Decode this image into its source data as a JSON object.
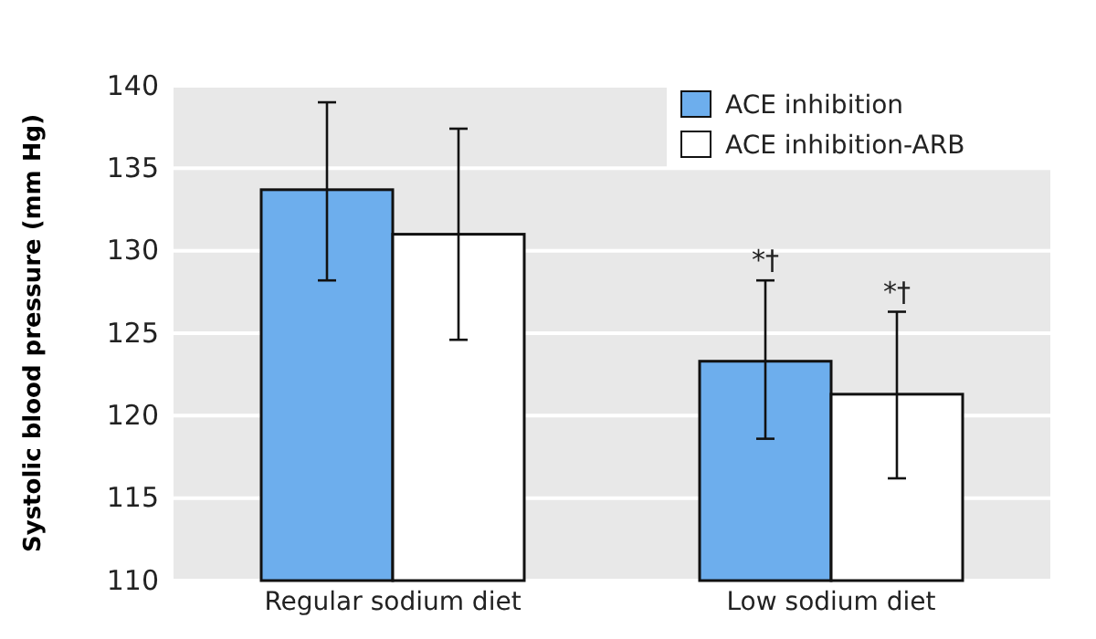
{
  "chart_data": {
    "type": "bar",
    "ylabel": "Systolic blood pressure (mm Hg)",
    "categories": [
      "Regular sodium diet",
      "Low sodium diet"
    ],
    "series": [
      {
        "name": "ACE inhibition",
        "color": "#6daeed",
        "values": [
          133.7,
          123.3
        ],
        "errors": [
          [
            128.2,
            139.0
          ],
          [
            118.6,
            128.2
          ]
        ]
      },
      {
        "name": "ACE inhibition-ARB",
        "color": "#ffffff",
        "values": [
          131.0,
          121.3
        ],
        "errors": [
          [
            124.6,
            137.4
          ],
          [
            116.2,
            126.3
          ]
        ]
      }
    ],
    "ylim": [
      110,
      140
    ],
    "yticks": [
      110,
      115,
      120,
      125,
      130,
      135,
      140
    ],
    "grid": "y",
    "legend": "top right",
    "annotations": [
      "*†",
      "*†"
    ]
  }
}
